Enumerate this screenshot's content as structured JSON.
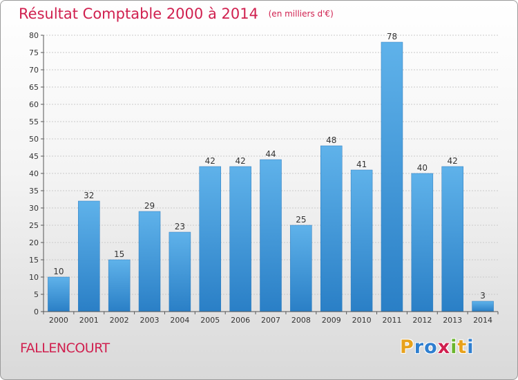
{
  "chart_data": {
    "type": "bar",
    "title": "Résultat Comptable 2000 à 2014",
    "subtitle": "(en milliers d'€)",
    "categories": [
      "2000",
      "2001",
      "2002",
      "2003",
      "2004",
      "2005",
      "2006",
      "2007",
      "2008",
      "2009",
      "2010",
      "2011",
      "2012",
      "2013",
      "2014"
    ],
    "values": [
      10,
      32,
      15,
      29,
      23,
      42,
      42,
      44,
      25,
      48,
      41,
      78,
      40,
      42,
      3
    ],
    "ylim": [
      0,
      80
    ],
    "ytick_step": 5,
    "xlabel": "",
    "ylabel": "",
    "grid": true,
    "bar_color": "#3a94d8"
  },
  "footer": {
    "commune": "FALLENCOURT",
    "logo_letters": [
      "P",
      "r",
      "o",
      "x",
      "i",
      "t",
      "i"
    ],
    "logo_colors": [
      "#e8a21c",
      "#2f7fd0",
      "#2f7fd0",
      "#d0204f",
      "#6bb52e",
      "#e8a21c",
      "#2f7fd0"
    ]
  }
}
